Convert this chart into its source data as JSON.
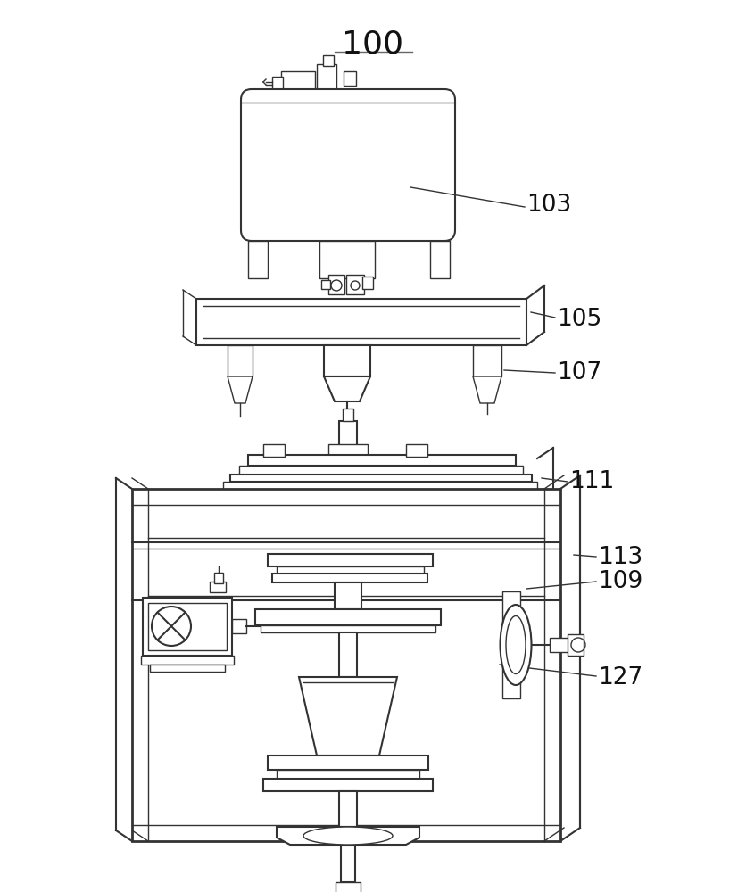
{
  "background_color": "#ffffff",
  "line_color": "#333333",
  "label_color": "#111111",
  "figsize": [
    8.37,
    10.0
  ],
  "dpi": 100
}
